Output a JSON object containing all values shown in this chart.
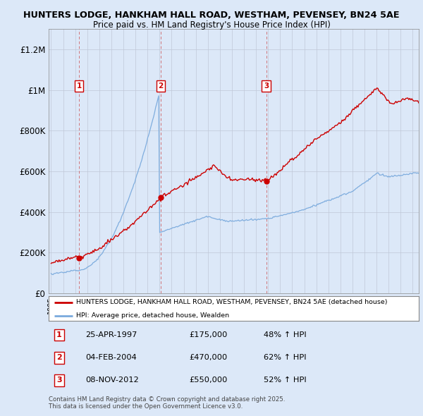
{
  "title1": "HUNTERS LODGE, HANKHAM HALL ROAD, WESTHAM, PEVENSEY, BN24 5AE",
  "title2": "Price paid vs. HM Land Registry's House Price Index (HPI)",
  "hpi_label": "HPI: Average price, detached house, Wealden",
  "property_label": "HUNTERS LODGE, HANKHAM HALL ROAD, WESTHAM, PEVENSEY, BN24 5AE (detached house)",
  "property_color": "#cc0000",
  "hpi_color": "#7aaadd",
  "background_color": "#dce8f8",
  "plot_bg": "#dce8f8",
  "ylim": [
    0,
    1300000
  ],
  "yticks": [
    0,
    200000,
    400000,
    600000,
    800000,
    1000000,
    1200000
  ],
  "ytick_labels": [
    "£0",
    "£200K",
    "£400K",
    "£600K",
    "£800K",
    "£1M",
    "£1.2M"
  ],
  "sales": [
    {
      "num": 1,
      "date": "25-APR-1997",
      "price": 175000,
      "pct": "48% ↑ HPI",
      "year": 1997.32
    },
    {
      "num": 2,
      "date": "04-FEB-2004",
      "price": 470000,
      "pct": "62% ↑ HPI",
      "year": 2004.09
    },
    {
      "num": 3,
      "date": "08-NOV-2012",
      "price": 550000,
      "pct": "52% ↑ HPI",
      "year": 2012.85
    }
  ],
  "footer": "Contains HM Land Registry data © Crown copyright and database right 2025.\nThis data is licensed under the Open Government Licence v3.0.",
  "xlim_start": 1994.8,
  "xlim_end": 2025.5
}
